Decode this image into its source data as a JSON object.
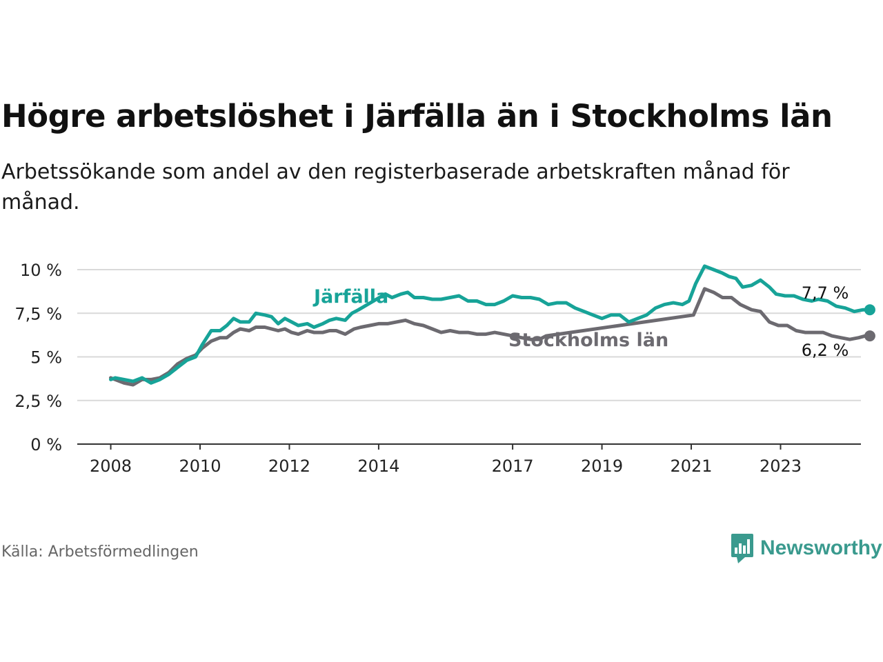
{
  "title": "Högre arbetslöshet i Järfälla än i Stockholms län",
  "subtitle": "Arbetssökande som andel av den registerbaserade arbetskraften månad för månad.",
  "source": "Källa: Arbetsförmedlingen",
  "brand": "Newsworthy",
  "colors": {
    "jarfalla": "#17a398",
    "stockholm": "#6c6a70",
    "grid": "#d9d9d9",
    "axis": "#333333",
    "brand": "#3a9a8e"
  },
  "chart_data": {
    "type": "line",
    "title": "Högre arbetslöshet i Järfälla än i Stockholms län",
    "xlabel": "",
    "ylabel": "",
    "ylim": [
      0,
      10
    ],
    "y_ticks": [
      0,
      2.5,
      5,
      7.5,
      10
    ],
    "y_tick_labels": [
      "0 %",
      "2,5 %",
      "5 %",
      "7,5 %",
      "10 %"
    ],
    "x_ticks": [
      2008,
      2010,
      2012,
      2014,
      2017,
      2019,
      2021,
      2023
    ],
    "x_tick_labels": [
      "2008",
      "2010",
      "2012",
      "2014",
      "2017",
      "2019",
      "2021",
      "2023"
    ],
    "xlim": [
      2007.25,
      2024.8
    ],
    "series": [
      {
        "name": "Järfälla",
        "end_label": "7,7 %",
        "points": [
          [
            2008.0,
            3.7
          ],
          [
            2008.1,
            3.8
          ],
          [
            2008.3,
            3.7
          ],
          [
            2008.5,
            3.6
          ],
          [
            2008.7,
            3.8
          ],
          [
            2008.9,
            3.5
          ],
          [
            2009.1,
            3.7
          ],
          [
            2009.3,
            4.0
          ],
          [
            2009.5,
            4.4
          ],
          [
            2009.7,
            4.8
          ],
          [
            2009.9,
            5.0
          ],
          [
            2010.05,
            5.7
          ],
          [
            2010.25,
            6.5
          ],
          [
            2010.45,
            6.5
          ],
          [
            2010.6,
            6.8
          ],
          [
            2010.75,
            7.2
          ],
          [
            2010.9,
            7.0
          ],
          [
            2011.1,
            7.0
          ],
          [
            2011.25,
            7.5
          ],
          [
            2011.45,
            7.4
          ],
          [
            2011.6,
            7.3
          ],
          [
            2011.75,
            6.9
          ],
          [
            2011.9,
            7.2
          ],
          [
            2012.05,
            7.0
          ],
          [
            2012.2,
            6.8
          ],
          [
            2012.4,
            6.9
          ],
          [
            2012.55,
            6.7
          ],
          [
            2012.75,
            6.9
          ],
          [
            2012.9,
            7.1
          ],
          [
            2013.05,
            7.2
          ],
          [
            2013.25,
            7.1
          ],
          [
            2013.4,
            7.5
          ],
          [
            2013.55,
            7.7
          ],
          [
            2014.15,
            8.6
          ],
          [
            2014.3,
            8.4
          ],
          [
            2014.5,
            8.6
          ],
          [
            2014.65,
            8.7
          ],
          [
            2014.8,
            8.4
          ],
          [
            2015.0,
            8.4
          ],
          [
            2015.2,
            8.3
          ],
          [
            2015.4,
            8.3
          ],
          [
            2015.6,
            8.4
          ],
          [
            2015.8,
            8.5
          ],
          [
            2016.0,
            8.2
          ],
          [
            2016.2,
            8.2
          ],
          [
            2016.4,
            8.0
          ],
          [
            2016.6,
            8.0
          ],
          [
            2016.8,
            8.2
          ],
          [
            2017.0,
            8.5
          ],
          [
            2017.2,
            8.4
          ],
          [
            2017.4,
            8.4
          ],
          [
            2017.6,
            8.3
          ],
          [
            2017.8,
            8.0
          ],
          [
            2018.0,
            8.1
          ],
          [
            2018.2,
            8.1
          ],
          [
            2018.4,
            7.8
          ],
          [
            2018.6,
            7.6
          ],
          [
            2018.8,
            7.4
          ],
          [
            2019.0,
            7.2
          ],
          [
            2019.2,
            7.4
          ],
          [
            2019.4,
            7.4
          ],
          [
            2019.6,
            7.0
          ],
          [
            2019.8,
            7.2
          ],
          [
            2020.0,
            7.4
          ],
          [
            2020.2,
            7.8
          ],
          [
            2020.4,
            8.0
          ],
          [
            2020.6,
            8.1
          ],
          [
            2020.8,
            8.0
          ],
          [
            2020.95,
            8.2
          ],
          [
            2021.1,
            9.2
          ],
          [
            2021.3,
            10.2
          ],
          [
            2021.5,
            10.0
          ],
          [
            2021.7,
            9.8
          ],
          [
            2021.85,
            9.6
          ],
          [
            2022.0,
            9.5
          ],
          [
            2022.15,
            9.0
          ],
          [
            2022.35,
            9.1
          ],
          [
            2022.55,
            9.4
          ],
          [
            2022.75,
            9.0
          ],
          [
            2022.9,
            8.6
          ],
          [
            2023.1,
            8.5
          ],
          [
            2023.3,
            8.5
          ],
          [
            2023.5,
            8.3
          ],
          [
            2023.7,
            8.2
          ],
          [
            2023.85,
            8.3
          ],
          [
            2024.05,
            8.2
          ],
          [
            2024.25,
            7.9
          ],
          [
            2024.45,
            7.8
          ],
          [
            2024.65,
            7.6
          ],
          [
            2024.85,
            7.7
          ],
          [
            2025.0,
            7.7
          ]
        ]
      },
      {
        "name": "Stockholms län",
        "end_label": "6,2 %",
        "points": [
          [
            2008.0,
            3.8
          ],
          [
            2008.1,
            3.7
          ],
          [
            2008.3,
            3.5
          ],
          [
            2008.5,
            3.4
          ],
          [
            2008.7,
            3.7
          ],
          [
            2008.9,
            3.7
          ],
          [
            2009.1,
            3.8
          ],
          [
            2009.3,
            4.1
          ],
          [
            2009.5,
            4.6
          ],
          [
            2009.7,
            4.9
          ],
          [
            2009.9,
            5.1
          ],
          [
            2010.05,
            5.5
          ],
          [
            2010.25,
            5.9
          ],
          [
            2010.45,
            6.1
          ],
          [
            2010.6,
            6.1
          ],
          [
            2010.75,
            6.4
          ],
          [
            2010.9,
            6.6
          ],
          [
            2011.1,
            6.5
          ],
          [
            2011.25,
            6.7
          ],
          [
            2011.45,
            6.7
          ],
          [
            2011.6,
            6.6
          ],
          [
            2011.75,
            6.5
          ],
          [
            2011.9,
            6.6
          ],
          [
            2012.05,
            6.4
          ],
          [
            2012.2,
            6.3
          ],
          [
            2012.4,
            6.5
          ],
          [
            2012.55,
            6.4
          ],
          [
            2012.75,
            6.4
          ],
          [
            2012.9,
            6.5
          ],
          [
            2013.05,
            6.5
          ],
          [
            2013.25,
            6.3
          ],
          [
            2013.45,
            6.6
          ],
          [
            2013.6,
            6.7
          ],
          [
            2013.8,
            6.8
          ],
          [
            2014.0,
            6.9
          ],
          [
            2014.2,
            6.9
          ],
          [
            2014.4,
            7.0
          ],
          [
            2014.6,
            7.1
          ],
          [
            2014.8,
            6.9
          ],
          [
            2015.0,
            6.8
          ],
          [
            2015.2,
            6.6
          ],
          [
            2015.4,
            6.4
          ],
          [
            2015.6,
            6.5
          ],
          [
            2015.8,
            6.4
          ],
          [
            2016.0,
            6.4
          ],
          [
            2016.2,
            6.3
          ],
          [
            2016.4,
            6.3
          ],
          [
            2016.6,
            6.4
          ],
          [
            2016.8,
            6.3
          ],
          [
            2017.0,
            6.2
          ],
          [
            2017.2,
            6.1
          ],
          [
            2017.4,
            6.0
          ],
          [
            2017.6,
            6.0
          ],
          [
            2017.75,
            6.2
          ],
          [
            2021.05,
            7.4
          ],
          [
            2021.3,
            8.9
          ],
          [
            2021.5,
            8.7
          ],
          [
            2021.7,
            8.4
          ],
          [
            2021.9,
            8.4
          ],
          [
            2022.1,
            8.0
          ],
          [
            2022.35,
            7.7
          ],
          [
            2022.55,
            7.6
          ],
          [
            2022.75,
            7.0
          ],
          [
            2022.95,
            6.8
          ],
          [
            2023.15,
            6.8
          ],
          [
            2023.35,
            6.5
          ],
          [
            2023.55,
            6.4
          ],
          [
            2023.75,
            6.4
          ],
          [
            2023.95,
            6.4
          ],
          [
            2024.15,
            6.2
          ],
          [
            2024.35,
            6.1
          ],
          [
            2024.55,
            6.0
          ],
          [
            2024.75,
            6.1
          ],
          [
            2024.9,
            6.2
          ],
          [
            2025.0,
            6.2
          ]
        ]
      }
    ]
  }
}
